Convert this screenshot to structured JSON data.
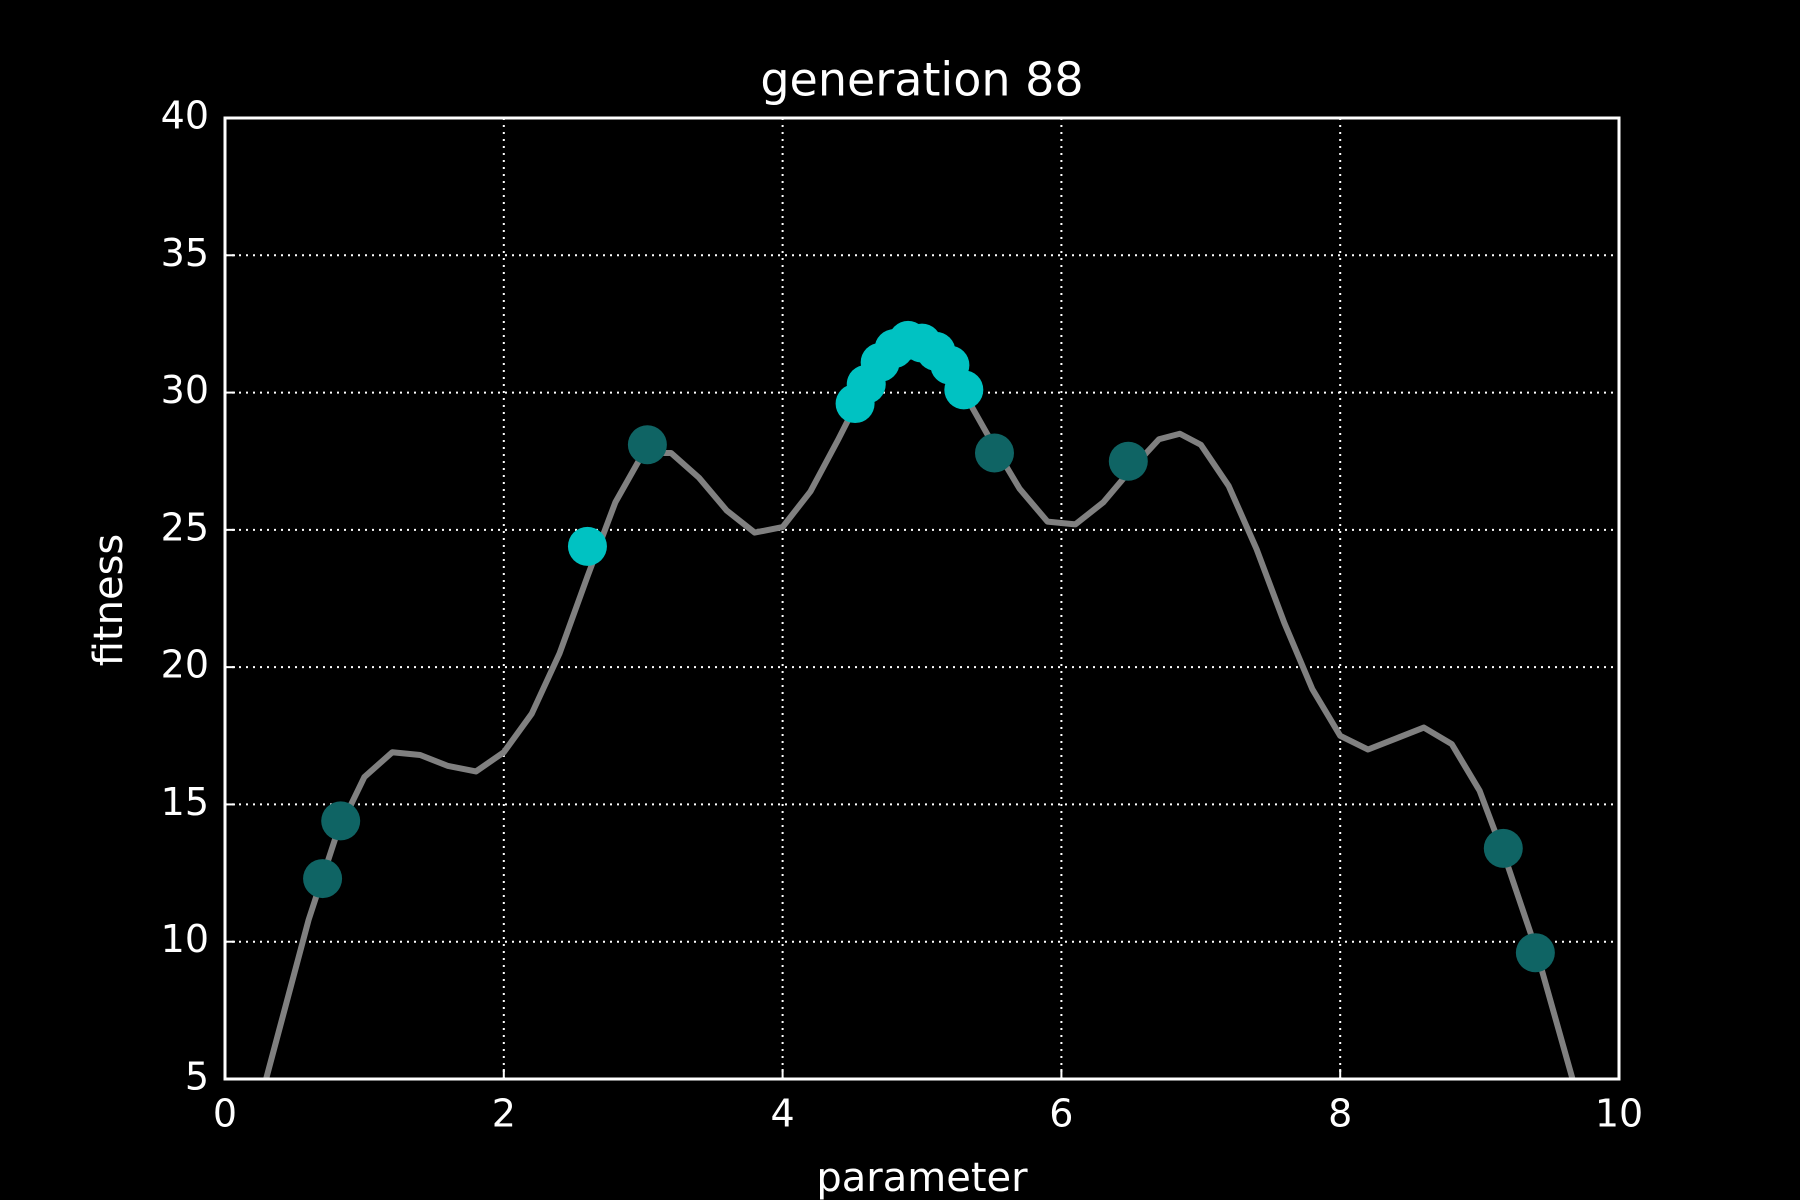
{
  "chart_data": {
    "type": "scatter",
    "title": "generation 88",
    "x_label": "parameter",
    "y_label": "fitness",
    "xlim": [
      0,
      10
    ],
    "ylim": [
      5,
      40
    ],
    "xticks": [
      0,
      2,
      4,
      6,
      8,
      10
    ],
    "yticks": [
      5,
      10,
      15,
      20,
      25,
      30,
      35,
      40
    ],
    "grid": true,
    "series": [
      {
        "type": "line",
        "color": "#808080",
        "x": [
          0.2,
          0.4,
          0.6,
          0.8,
          1.0,
          1.2,
          1.4,
          1.6,
          1.8,
          2.0,
          2.2,
          2.4,
          2.6,
          2.8,
          3.0,
          3.2,
          3.4,
          3.6,
          3.8,
          4.0,
          4.2,
          4.4,
          4.6,
          4.8,
          4.95,
          5.1,
          5.3,
          5.5,
          5.7,
          5.9,
          6.1,
          6.3,
          6.5,
          6.7,
          6.85,
          7.0,
          7.2,
          7.4,
          7.6,
          7.8,
          8.0,
          8.2,
          8.4,
          8.6,
          8.8,
          9.0,
          9.2,
          9.4,
          9.6,
          9.8
        ],
        "values": [
          3.2,
          7.0,
          10.8,
          13.9,
          16.0,
          16.9,
          16.8,
          16.4,
          16.2,
          16.9,
          18.3,
          20.5,
          23.3,
          26.0,
          27.8,
          27.8,
          26.9,
          25.7,
          24.9,
          25.1,
          26.4,
          28.3,
          30.3,
          31.6,
          31.9,
          31.5,
          30.0,
          28.2,
          26.5,
          25.3,
          25.2,
          26.0,
          27.2,
          28.3,
          28.5,
          28.1,
          26.6,
          24.3,
          21.6,
          19.2,
          17.5,
          17.0,
          17.4,
          17.8,
          17.2,
          15.5,
          12.8,
          9.8,
          6.2,
          2.6
        ]
      },
      {
        "type": "scatter",
        "color": "#0f6464",
        "x": [
          0.7,
          0.83,
          3.03,
          5.52,
          6.48,
          9.17,
          9.4
        ],
        "values": [
          12.3,
          14.4,
          28.1,
          27.8,
          27.5,
          13.4,
          9.6
        ]
      },
      {
        "type": "scatter",
        "color": "#00c2c2",
        "x": [
          2.6,
          4.52,
          4.6,
          4.7,
          4.8,
          4.9,
          5.0,
          5.1,
          5.2,
          5.3
        ],
        "values": [
          24.4,
          29.6,
          30.3,
          31.1,
          31.6,
          31.9,
          31.8,
          31.5,
          31.0,
          30.1
        ]
      }
    ]
  }
}
